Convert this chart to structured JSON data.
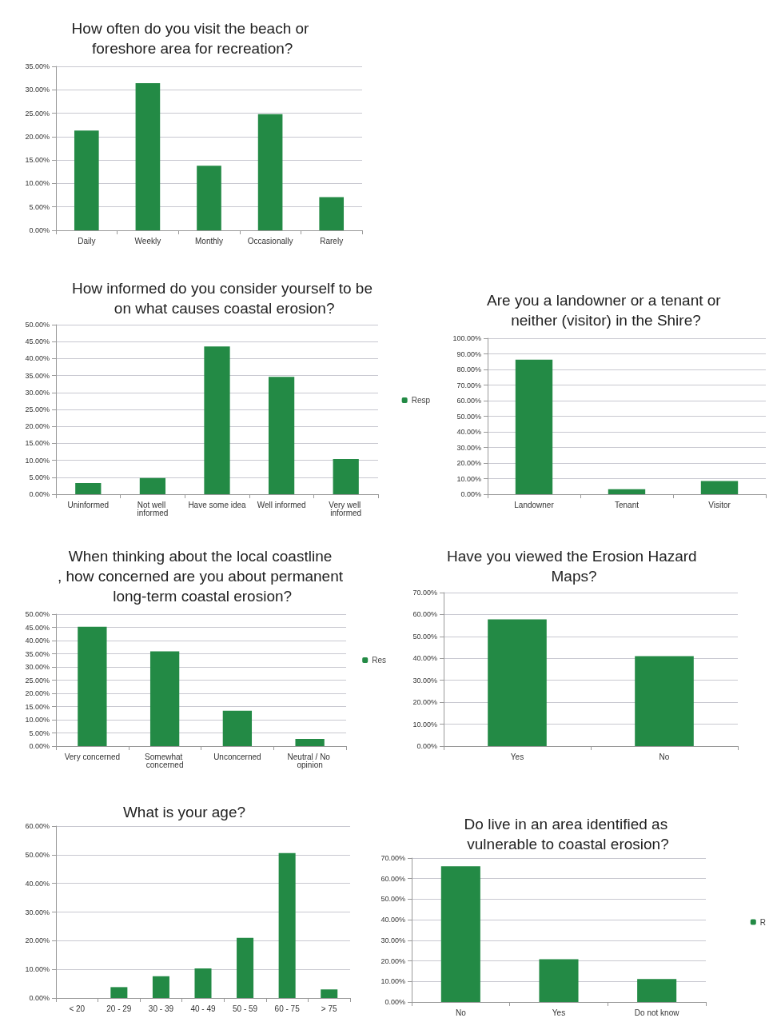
{
  "chart_data": [
    {
      "type": "bar",
      "title": "How often do you visit the beach or foreshore area for recreation?",
      "categories": [
        "Daily",
        "Weekly",
        "Monthly",
        "Occasionally",
        "Rarely"
      ],
      "values": [
        21.3,
        31.4,
        13.8,
        24.8,
        7.1
      ],
      "color": "#238a45",
      "ylim": [
        0,
        35
      ],
      "yticks": [
        {
          "value": 0,
          "label": "0.00%"
        },
        {
          "value": 5,
          "label": "5.00%"
        },
        {
          "value": 10,
          "label": "10.00%"
        },
        {
          "value": 15,
          "label": "15.00%"
        },
        {
          "value": 20,
          "label": "20.00%"
        },
        {
          "value": 25,
          "label": "25.00%"
        },
        {
          "value": 30,
          "label": "30.00%"
        },
        {
          "value": 35,
          "label": "35.00%"
        }
      ],
      "grid": "y"
    },
    {
      "type": "bar",
      "title": "How informed do you consider yourself to be on what causes coastal erosion?",
      "categories": [
        "Uninformed",
        "Not well informed",
        "Have some idea",
        "Well informed",
        "Very well informed"
      ],
      "series": [
        {
          "name": "Resp",
          "color": "#238a45",
          "values": [
            3.3,
            4.8,
            43.6,
            34.6,
            10.4
          ]
        }
      ],
      "legend": "right",
      "ylim": [
        0,
        50
      ],
      "yticks": [
        {
          "value": 0,
          "label": "0.00%"
        },
        {
          "value": 5,
          "label": "5.00%"
        },
        {
          "value": 10,
          "label": "10.00%"
        },
        {
          "value": 15,
          "label": "15.00%"
        },
        {
          "value": 20,
          "label": "20.00%"
        },
        {
          "value": 25,
          "label": "25.00%"
        },
        {
          "value": 30,
          "label": "30.00%"
        },
        {
          "value": 35,
          "label": "35.00%"
        },
        {
          "value": 40,
          "label": "40.00%"
        },
        {
          "value": 45,
          "label": "45.00%"
        },
        {
          "value": 50,
          "label": "50.00%"
        }
      ],
      "grid": "y"
    },
    {
      "type": "bar",
      "title": "Are you a landowner or a tenant or neither (visitor) in the Shire?",
      "categories": [
        "Landowner",
        "Tenant",
        "Visitor"
      ],
      "values": [
        86.3,
        3.2,
        8.5
      ],
      "color": "#238a45",
      "ylim": [
        0,
        100
      ],
      "yticks": [
        {
          "value": 0,
          "label": "0.00%"
        },
        {
          "value": 10,
          "label": "10.00%"
        },
        {
          "value": 20,
          "label": "20.00%"
        },
        {
          "value": 30,
          "label": "30.00%"
        },
        {
          "value": 40,
          "label": "40.00%"
        },
        {
          "value": 50,
          "label": "50.00%"
        },
        {
          "value": 60,
          "label": "60.00%"
        },
        {
          "value": 70,
          "label": "70.00%"
        },
        {
          "value": 80,
          "label": "80.00%"
        },
        {
          "value": 90,
          "label": "90.00%"
        },
        {
          "value": 100,
          "label": "100.00%"
        }
      ],
      "grid": "y"
    },
    {
      "type": "bar",
      "title": "When thinking about the local coastline, how concerned are you about permanent long-term coastal erosion?",
      "categories": [
        "Very concerned",
        "Somewhat concerned",
        "Unconcerned",
        "Neutral / No opinion"
      ],
      "series": [
        {
          "name": "Res",
          "color": "#238a45",
          "values": [
            45.2,
            35.9,
            13.4,
            2.7
          ]
        }
      ],
      "legend": "right",
      "ylim": [
        0,
        50
      ],
      "yticks": [
        {
          "value": 0,
          "label": "0.00%"
        },
        {
          "value": 5,
          "label": "5.00%"
        },
        {
          "value": 10,
          "label": "10.00%"
        },
        {
          "value": 15,
          "label": "15.00%"
        },
        {
          "value": 20,
          "label": "20.00%"
        },
        {
          "value": 25,
          "label": "25.00%"
        },
        {
          "value": 30,
          "label": "30.00%"
        },
        {
          "value": 35,
          "label": "35.00%"
        },
        {
          "value": 40,
          "label": "40.00%"
        },
        {
          "value": 45,
          "label": "45.00%"
        },
        {
          "value": 50,
          "label": "50.00%"
        }
      ],
      "grid": "y"
    },
    {
      "type": "bar",
      "title": "Have you viewed the Erosion Hazard Maps?",
      "categories": [
        "Yes",
        "No"
      ],
      "values": [
        57.8,
        41.0
      ],
      "color": "#238a45",
      "ylim": [
        0,
        70
      ],
      "yticks": [
        {
          "value": 0,
          "label": "0.00%"
        },
        {
          "value": 10,
          "label": "10.00%"
        },
        {
          "value": 20,
          "label": "20.00%"
        },
        {
          "value": 30,
          "label": "30.00%"
        },
        {
          "value": 40,
          "label": "40.00%"
        },
        {
          "value": 50,
          "label": "50.00%"
        },
        {
          "value": 60,
          "label": "60.00%"
        },
        {
          "value": 70,
          "label": "70.00%"
        }
      ],
      "grid": "y"
    },
    {
      "type": "bar",
      "title": "What is your age?",
      "categories": [
        "< 20",
        "20 - 29",
        "30 - 39",
        "40 - 49",
        "50 - 59",
        "60 - 75",
        "> 75"
      ],
      "values": [
        0,
        3.8,
        7.6,
        10.3,
        21.0,
        50.6,
        3.0
      ],
      "color": "#238a45",
      "ylim": [
        0,
        60
      ],
      "yticks": [
        {
          "value": 0,
          "label": "0.00%"
        },
        {
          "value": 10,
          "label": "10.00%"
        },
        {
          "value": 20,
          "label": "20.00%"
        },
        {
          "value": 30,
          "label": "30.00%"
        },
        {
          "value": 40,
          "label": "40.00%"
        },
        {
          "value": 50,
          "label": "50.00%"
        },
        {
          "value": 60,
          "label": "60.00%"
        }
      ],
      "grid": "y"
    },
    {
      "type": "bar",
      "title": "Do live in an area identified as vulnerable to coastal erosion?",
      "categories": [
        "No",
        "Yes",
        "Do not know"
      ],
      "series": [
        {
          "name": "R",
          "color": "#238a45",
          "values": [
            66.0,
            20.8,
            11.2
          ]
        }
      ],
      "legend": "right",
      "ylim": [
        0,
        70
      ],
      "yticks": [
        {
          "value": 0,
          "label": "0.00%"
        },
        {
          "value": 10,
          "label": "10.00%"
        },
        {
          "value": 20,
          "label": "20.00%"
        },
        {
          "value": 30,
          "label": "30.00%"
        },
        {
          "value": 40,
          "label": "40.00%"
        },
        {
          "value": 50,
          "label": "50.00%"
        },
        {
          "value": 60,
          "label": "60.00%"
        },
        {
          "value": 70,
          "label": "70.00%"
        }
      ],
      "grid": "y"
    }
  ]
}
